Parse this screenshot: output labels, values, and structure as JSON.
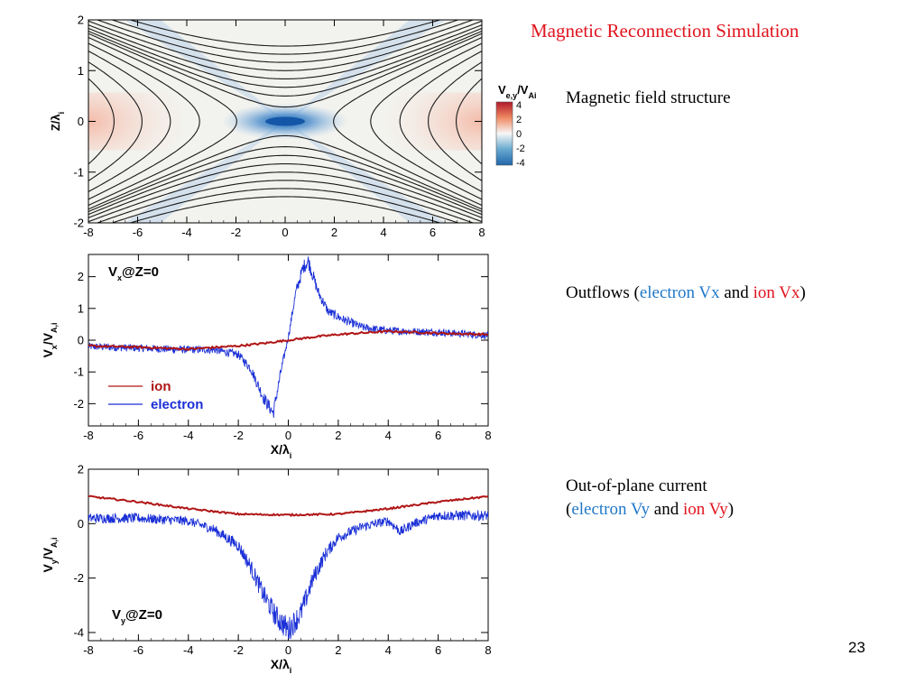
{
  "slide": {
    "title": "Magnetic Reconnection Simulation",
    "page_number": "23"
  },
  "captions": {
    "field": "Magnetic field structure",
    "outflows": {
      "prefix": "Outflows (",
      "electron": "electron Vx",
      "and": " and ",
      "ion": "ion Vx",
      "suffix": ")"
    },
    "current": {
      "line1": "Out-of-plane current",
      "open": "(",
      "electron": "electron Vy",
      "and": " and ",
      "ion": "ion Vy",
      "close": ")"
    }
  },
  "colors": {
    "ion": "#b01515",
    "electron": "#1a2fd6",
    "accent_red": "#e0141e",
    "accent_blue": "#1f78c8"
  },
  "chart_data": [
    {
      "type": "heatmap",
      "name": "field-structure",
      "ylabel": "Z/λi",
      "x_ticks": [
        -8,
        -6,
        -4,
        -2,
        0,
        2,
        4,
        6,
        8
      ],
      "y_ticks": [
        -2,
        -1,
        0,
        1,
        2
      ],
      "xlim": [
        -8,
        8
      ],
      "ylim": [
        -2,
        2
      ],
      "colorbar": {
        "label": "Ve,y/VAi",
        "ticks": [
          4,
          2,
          0,
          -2,
          -4
        ],
        "range": [
          -4,
          4
        ]
      }
    },
    {
      "type": "line",
      "name": "vx-profile",
      "annotation": "Vx@Z=0",
      "xlabel": "X/λi",
      "ylabel": "Vx/VA,i",
      "x_ticks": [
        -8,
        -6,
        -4,
        -2,
        0,
        2,
        4,
        6,
        8
      ],
      "y_ticks": [
        2,
        1,
        0,
        -1,
        -2
      ],
      "xlim": [
        -8,
        8
      ],
      "ylim": [
        -2.7,
        2.7
      ],
      "legend": "bottom-left",
      "series": [
        {
          "name": "ion",
          "x": [
            -8,
            -6,
            -4,
            -2,
            -1,
            0,
            1,
            2,
            4,
            6,
            8
          ],
          "values": [
            -0.18,
            -0.22,
            -0.28,
            -0.18,
            -0.1,
            0,
            0.1,
            0.18,
            0.28,
            0.22,
            0.18
          ]
        },
        {
          "name": "electron",
          "x": [
            -8,
            -6,
            -4,
            -3,
            -2,
            -1.5,
            -1,
            -0.6,
            -0.3,
            0,
            0.3,
            0.6,
            0.8,
            1.2,
            1.6,
            2.2,
            3,
            4,
            6,
            8
          ],
          "values": [
            -0.2,
            -0.25,
            -0.3,
            -0.3,
            -0.45,
            -0.9,
            -1.8,
            -2.3,
            -1.0,
            0.1,
            1.5,
            2.3,
            2.5,
            1.5,
            0.9,
            0.65,
            0.4,
            0.3,
            0.25,
            0.15
          ]
        }
      ]
    },
    {
      "type": "line",
      "name": "vy-profile",
      "annotation": "Vy@Z=0",
      "xlabel": "X/λi",
      "ylabel": "Vy/VA,i",
      "x_ticks": [
        -8,
        -6,
        -4,
        -2,
        0,
        2,
        4,
        6,
        8
      ],
      "y_ticks": [
        2,
        0,
        -2,
        -4
      ],
      "xlim": [
        -8,
        8
      ],
      "ylim": [
        -4.3,
        2
      ],
      "series": [
        {
          "name": "ion",
          "x": [
            -8,
            -6,
            -4,
            -2,
            0,
            2,
            4,
            6,
            8
          ],
          "values": [
            1.0,
            0.8,
            0.55,
            0.35,
            0.32,
            0.35,
            0.55,
            0.8,
            1.0
          ]
        },
        {
          "name": "electron",
          "x": [
            -8,
            -6,
            -4,
            -3,
            -2,
            -1.5,
            -1,
            -0.5,
            0,
            0.5,
            1,
            1.5,
            2,
            3,
            4,
            4.5,
            5,
            6,
            8
          ],
          "values": [
            0.2,
            0.2,
            0.1,
            -0.2,
            -0.8,
            -1.6,
            -2.6,
            -3.4,
            -3.9,
            -3.3,
            -2.0,
            -1.1,
            -0.5,
            -0.1,
            0.1,
            -0.3,
            0.0,
            0.3,
            0.3
          ]
        }
      ]
    }
  ]
}
